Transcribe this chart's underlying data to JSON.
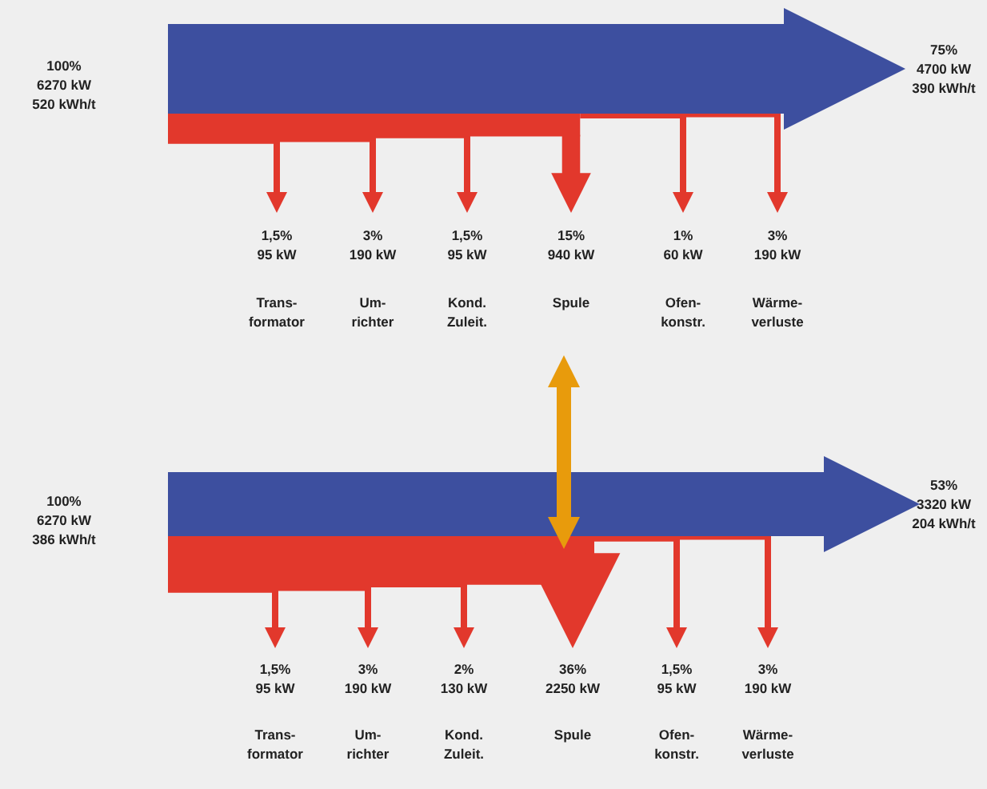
{
  "chart_data": [
    {
      "type": "other",
      "categories": [
        "Trans-\nformator",
        "Um-\nrichter",
        "Kond.\nZuleit.",
        "Spule",
        "Ofen-\nkonstr.",
        "Wärme-\nverluste"
      ],
      "values": [
        95,
        190,
        95,
        940,
        60,
        190
      ],
      "value_labels": [
        "1,5%\n95 kW",
        "3%\n190 kW",
        "1,5%\n95 kW",
        "15%\n940 kW",
        "1%\n60 kW",
        "3%\n190 kW"
      ],
      "colors": [
        "#e2382c",
        "#e2382c",
        "#e2382c",
        "#e2382c",
        "#e2382c",
        "#e2382c"
      ],
      "annotations": [
        "100%\n6270 kW\n520 kWh/t",
        "75%\n4700 kW\n390 kWh/t"
      ]
    },
    {
      "type": "other",
      "categories": [
        "Trans-\nformator",
        "Um-\nrichter",
        "Kond.\nZuleit.",
        "Spule",
        "Ofen-\nkonstr.",
        "Wärme-\nverluste"
      ],
      "values": [
        95,
        190,
        130,
        2250,
        95,
        190
      ],
      "value_labels": [
        "1,5%\n95 kW",
        "3%\n190 kW",
        "2%\n130 kW",
        "36%\n2250 kW",
        "1,5%\n95 kW",
        "3%\n190 kW"
      ],
      "colors": [
        "#e2382c",
        "#e2382c",
        "#e2382c",
        "#e2382c",
        "#e2382c",
        "#e2382c"
      ],
      "annotations": [
        "100%\n6270 kW\n386 kWh/t",
        "53%\n3320 kW\n204 kWh/t"
      ]
    }
  ]
}
